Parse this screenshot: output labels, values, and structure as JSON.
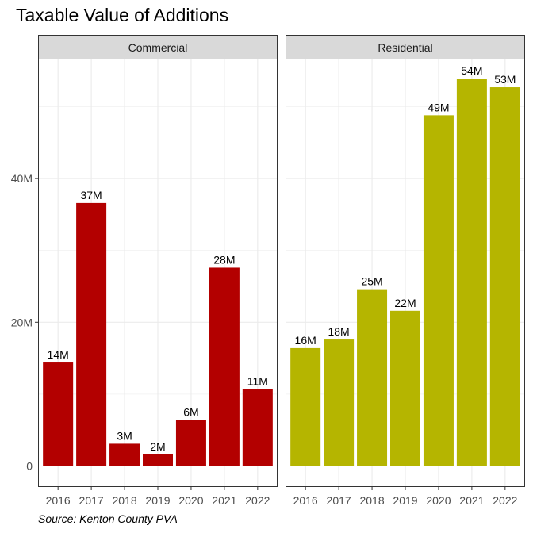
{
  "chart_data": {
    "type": "bar",
    "title": "Taxable Value of Additions",
    "caption": "Source: Kenton County PVA",
    "xlabel": "",
    "ylabel": "",
    "ylim": [
      0,
      57
    ],
    "y_ticks": [
      {
        "value": 0,
        "label": "0"
      },
      {
        "value": 20,
        "label": "20M"
      },
      {
        "value": 40,
        "label": "40M"
      }
    ],
    "categories": [
      "2016",
      "2017",
      "2018",
      "2019",
      "2020",
      "2021",
      "2022"
    ],
    "grid": true,
    "legend": "none",
    "panels": [
      {
        "name": "Commercial",
        "color": "#B30000",
        "values": [
          14.4,
          36.6,
          3.1,
          1.6,
          6.4,
          27.6,
          10.7
        ],
        "labels": [
          "14M",
          "37M",
          "3M",
          "2M",
          "6M",
          "28M",
          "11M"
        ]
      },
      {
        "name": "Residential",
        "color": "#B5B500",
        "values": [
          16.4,
          17.6,
          24.6,
          21.6,
          48.8,
          53.9,
          52.7
        ],
        "labels": [
          "16M",
          "18M",
          "25M",
          "22M",
          "49M",
          "54M",
          "53M"
        ]
      }
    ]
  }
}
